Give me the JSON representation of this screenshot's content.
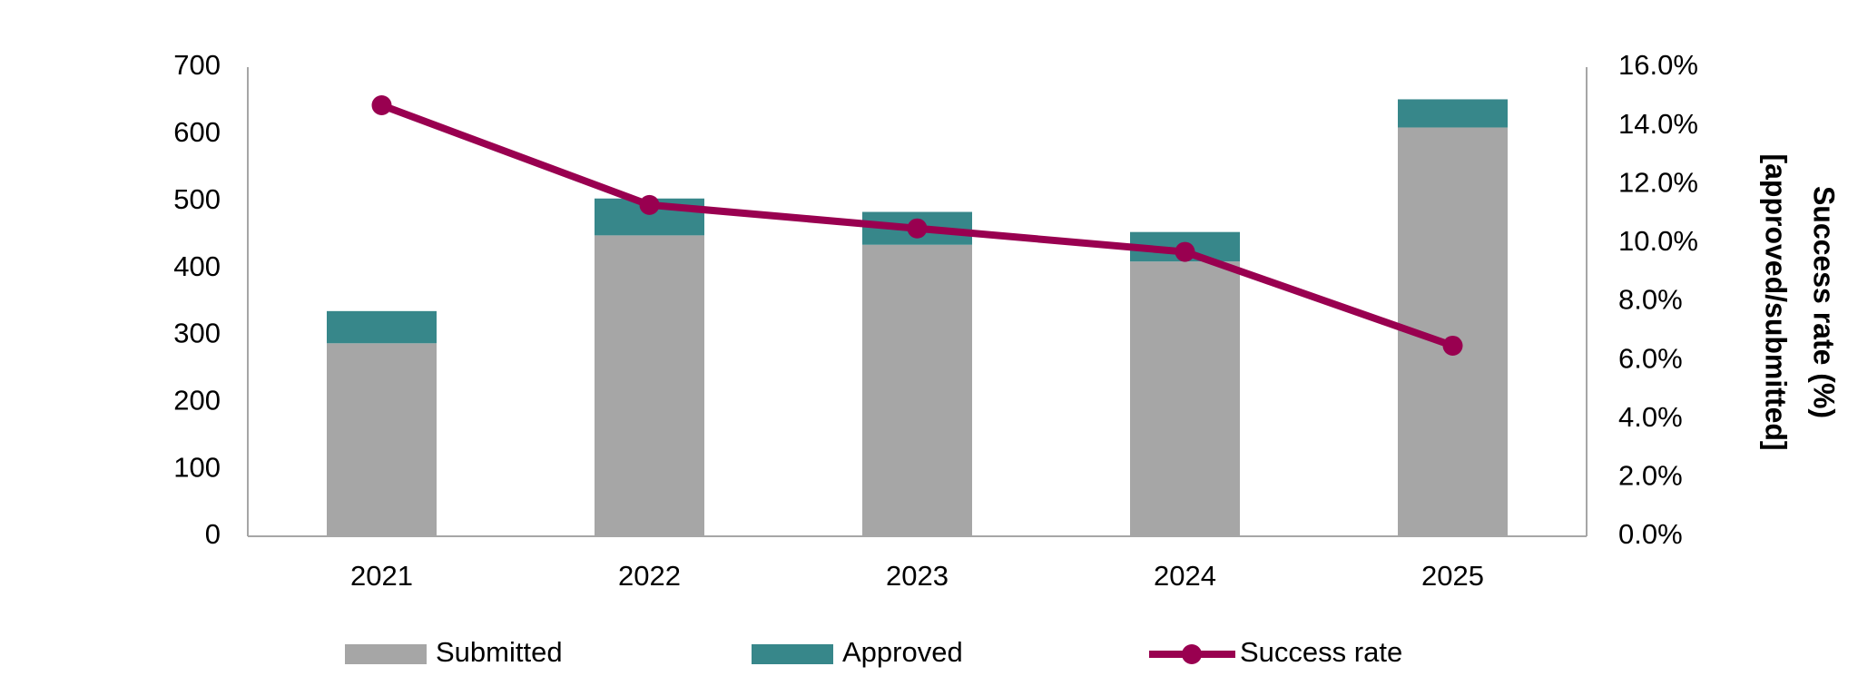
{
  "chart_data": {
    "type": "bar",
    "categories": [
      "2021",
      "2022",
      "2023",
      "2024",
      "2025"
    ],
    "series": [
      {
        "name": "Submitted",
        "type": "bar",
        "color": "#a6a6a6",
        "values": [
          288,
          449,
          435,
          410,
          610
        ]
      },
      {
        "name": "Approved",
        "type": "bar",
        "color": "#37878a",
        "values": [
          48,
          55,
          49,
          44,
          42
        ]
      },
      {
        "name": "Success rate",
        "type": "line",
        "axis": "y2",
        "color": "#990050",
        "values": [
          14.7,
          11.3,
          10.5,
          9.7,
          6.5
        ]
      }
    ],
    "stacked": true,
    "ylim": [
      0,
      700
    ],
    "yticks": [
      0,
      100,
      200,
      300,
      400,
      500,
      600,
      700
    ],
    "y2lim": [
      0,
      16
    ],
    "y2ticks": [
      {
        "value": 0,
        "label": "0.0%"
      },
      {
        "value": 2,
        "label": "2.0%"
      },
      {
        "value": 4,
        "label": "4.0%"
      },
      {
        "value": 6,
        "label": "6.0%"
      },
      {
        "value": 8,
        "label": "8.0%"
      },
      {
        "value": 10,
        "label": "10.0%"
      },
      {
        "value": 12,
        "label": "12.0%"
      },
      {
        "value": 14,
        "label": "14.0%"
      },
      {
        "value": 16,
        "label": "16.0%"
      }
    ],
    "y2label": [
      "Success rate (%)",
      "[approved/submitted]"
    ],
    "legend": "bottom",
    "grid": false
  }
}
